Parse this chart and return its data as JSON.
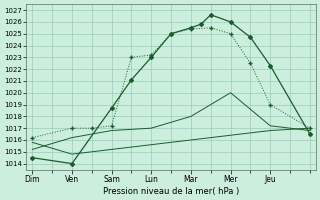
{
  "xlabel": "Pression niveau de la mer( hPa )",
  "background_color": "#cceedd",
  "grid_color": "#99ccbb",
  "line_color": "#1a5c2a",
  "ylim": [
    1013.5,
    1027.5
  ],
  "yticks": [
    1014,
    1015,
    1016,
    1017,
    1018,
    1019,
    1020,
    1021,
    1022,
    1023,
    1024,
    1025,
    1026,
    1027
  ],
  "x_labels": [
    "Dim",
    "Ven",
    "Sam",
    "Lun",
    "Mar",
    "Mer",
    "Jeu"
  ],
  "x_major_ticks": [
    0,
    2,
    4,
    6,
    8,
    10,
    12
  ],
  "x_minor_ticks": [
    0,
    1,
    2,
    3,
    4,
    5,
    6,
    7,
    8,
    9,
    10,
    11,
    12,
    13,
    14
  ],
  "xlim": [
    -0.3,
    14.3
  ],
  "series1_x": [
    0,
    2,
    4,
    5,
    6,
    7,
    8,
    8.5,
    9,
    10,
    11,
    12,
    14
  ],
  "series1_y": [
    1014.5,
    1014.0,
    1018.7,
    1021.1,
    1023.0,
    1025.0,
    1025.5,
    1025.8,
    1026.6,
    1026.0,
    1024.7,
    1022.3,
    1016.5
  ],
  "series2_x": [
    0,
    2,
    3,
    4,
    5,
    6,
    7,
    8,
    9,
    10,
    11,
    12,
    14
  ],
  "series2_y": [
    1016.2,
    1017.0,
    1017.0,
    1017.2,
    1023.0,
    1023.2,
    1025.0,
    1025.4,
    1025.5,
    1025.0,
    1022.5,
    1019.0,
    1017.0
  ],
  "series3_x": [
    0,
    2,
    4,
    6,
    8,
    10,
    12,
    14
  ],
  "series3_y": [
    1015.2,
    1016.2,
    1016.8,
    1017.0,
    1018.0,
    1020.0,
    1017.2,
    1016.8
  ],
  "series4_x": [
    0,
    2,
    12,
    14
  ],
  "series4_y": [
    1015.8,
    1014.8,
    1016.8,
    1017.0
  ]
}
